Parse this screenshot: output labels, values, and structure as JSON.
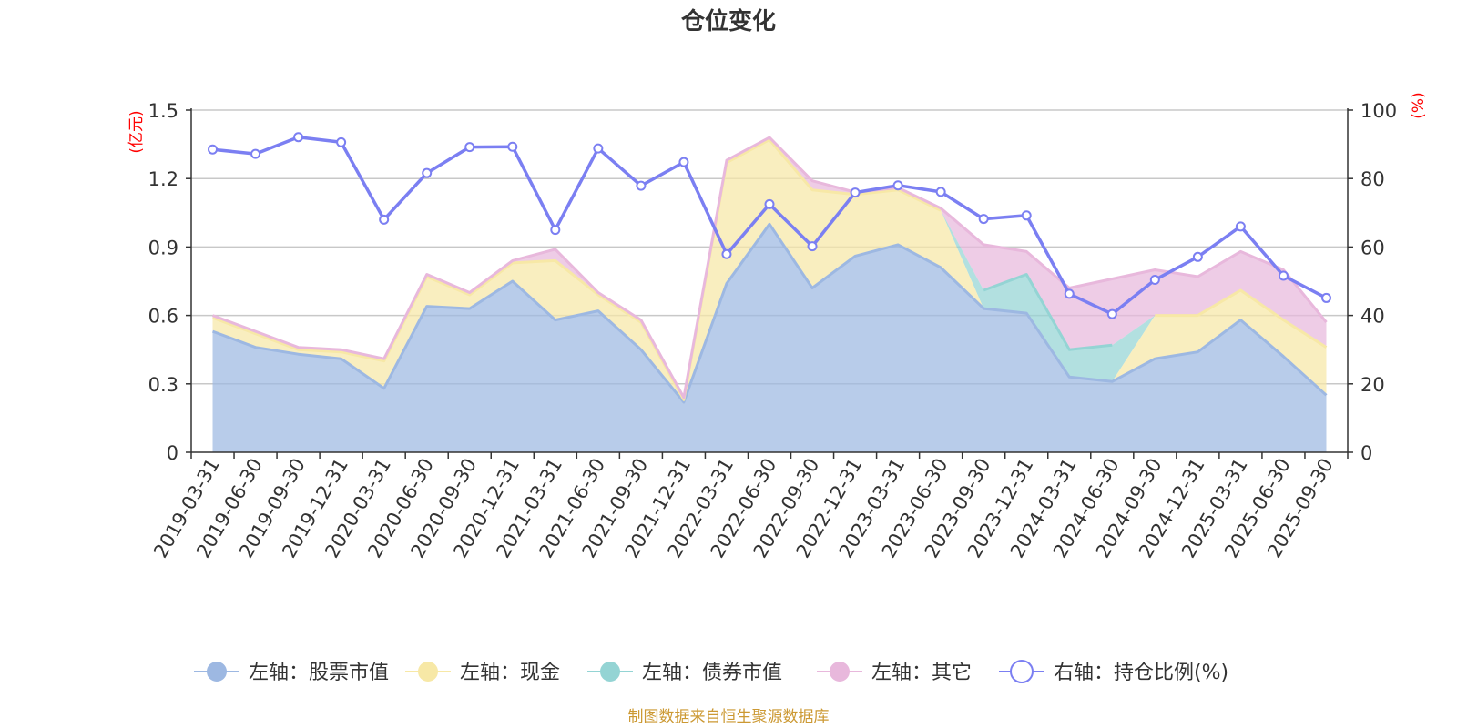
{
  "chart_data": {
    "type": "area",
    "title": "仓位变化",
    "source_note": "制图数据来自恒生聚源数据库",
    "left_axis": {
      "unit": "(亿元)",
      "ylim": [
        0,
        1.5
      ],
      "ticks": [
        "0",
        "0.3",
        "0.6",
        "0.9",
        "1.2",
        "1.5"
      ]
    },
    "right_axis": {
      "unit": "(%)",
      "ylim": [
        0,
        100
      ],
      "ticks": [
        "0",
        "20",
        "40",
        "60",
        "80",
        "100"
      ]
    },
    "categories": [
      "2019-03-31",
      "2019-06-30",
      "2019-09-30",
      "2019-12-31",
      "2020-03-31",
      "2020-06-30",
      "2020-09-30",
      "2020-12-31",
      "2021-03-31",
      "2021-06-30",
      "2021-09-30",
      "2021-12-31",
      "2022-03-31",
      "2022-06-30",
      "2022-09-30",
      "2022-12-31",
      "2023-03-31",
      "2023-06-30",
      "2023-09-30",
      "2023-12-31",
      "2024-03-31",
      "2024-06-30",
      "2024-09-30",
      "2024-12-31",
      "2025-03-31",
      "2025-06-30",
      "2025-09-30"
    ],
    "series": [
      {
        "name": "左轴：股票市值",
        "axis": "left",
        "color": "#9db8e2",
        "values": [
          0.53,
          0.46,
          0.43,
          0.41,
          0.28,
          0.64,
          0.63,
          0.75,
          0.58,
          0.62,
          0.45,
          0.22,
          0.74,
          1.0,
          0.72,
          0.86,
          0.91,
          0.81,
          0.63,
          0.61,
          0.33,
          0.31,
          0.41,
          0.44,
          0.58,
          0.42,
          0.25
        ]
      },
      {
        "name": "左轴：现金",
        "axis": "left",
        "color": "#f7e8a6",
        "values": [
          0.06,
          0.06,
          0.02,
          0.03,
          0.12,
          0.13,
          0.06,
          0.08,
          0.26,
          0.07,
          0.12,
          0.01,
          0.53,
          0.37,
          0.43,
          0.27,
          0.24,
          0.25,
          0.0,
          0.0,
          0.0,
          0.0,
          0.19,
          0.16,
          0.13,
          0.16,
          0.21
        ]
      },
      {
        "name": "左轴：债券市值",
        "axis": "left",
        "color": "#94d4d4",
        "values": [
          0,
          0,
          0,
          0,
          0,
          0,
          0,
          0,
          0,
          0,
          0,
          0,
          0,
          0,
          0,
          0,
          0,
          0,
          0.08,
          0.17,
          0.12,
          0.16,
          0,
          0,
          0,
          0,
          0
        ]
      },
      {
        "name": "左轴：其它",
        "axis": "left",
        "color": "#e8b8dc",
        "values": [
          0.01,
          0.01,
          0.01,
          0.01,
          0.01,
          0.01,
          0.01,
          0.01,
          0.05,
          0.01,
          0.01,
          0.01,
          0.01,
          0.01,
          0.04,
          0.01,
          0.01,
          0.01,
          0.2,
          0.1,
          0.27,
          0.29,
          0.2,
          0.17,
          0.17,
          0.22,
          0.11
        ]
      },
      {
        "name": "右轴：持仓比例(%)",
        "axis": "right",
        "color": "#7b7ff2",
        "values": [
          88.5,
          87.2,
          92.1,
          90.6,
          68.0,
          81.6,
          89.2,
          89.3,
          65.0,
          88.8,
          77.9,
          84.8,
          57.9,
          72.5,
          60.2,
          75.9,
          78.0,
          76.1,
          68.2,
          69.2,
          46.3,
          40.4,
          50.4,
          57.1,
          66.0,
          51.6,
          45.1
        ]
      }
    ],
    "legend_position": "bottom"
  }
}
